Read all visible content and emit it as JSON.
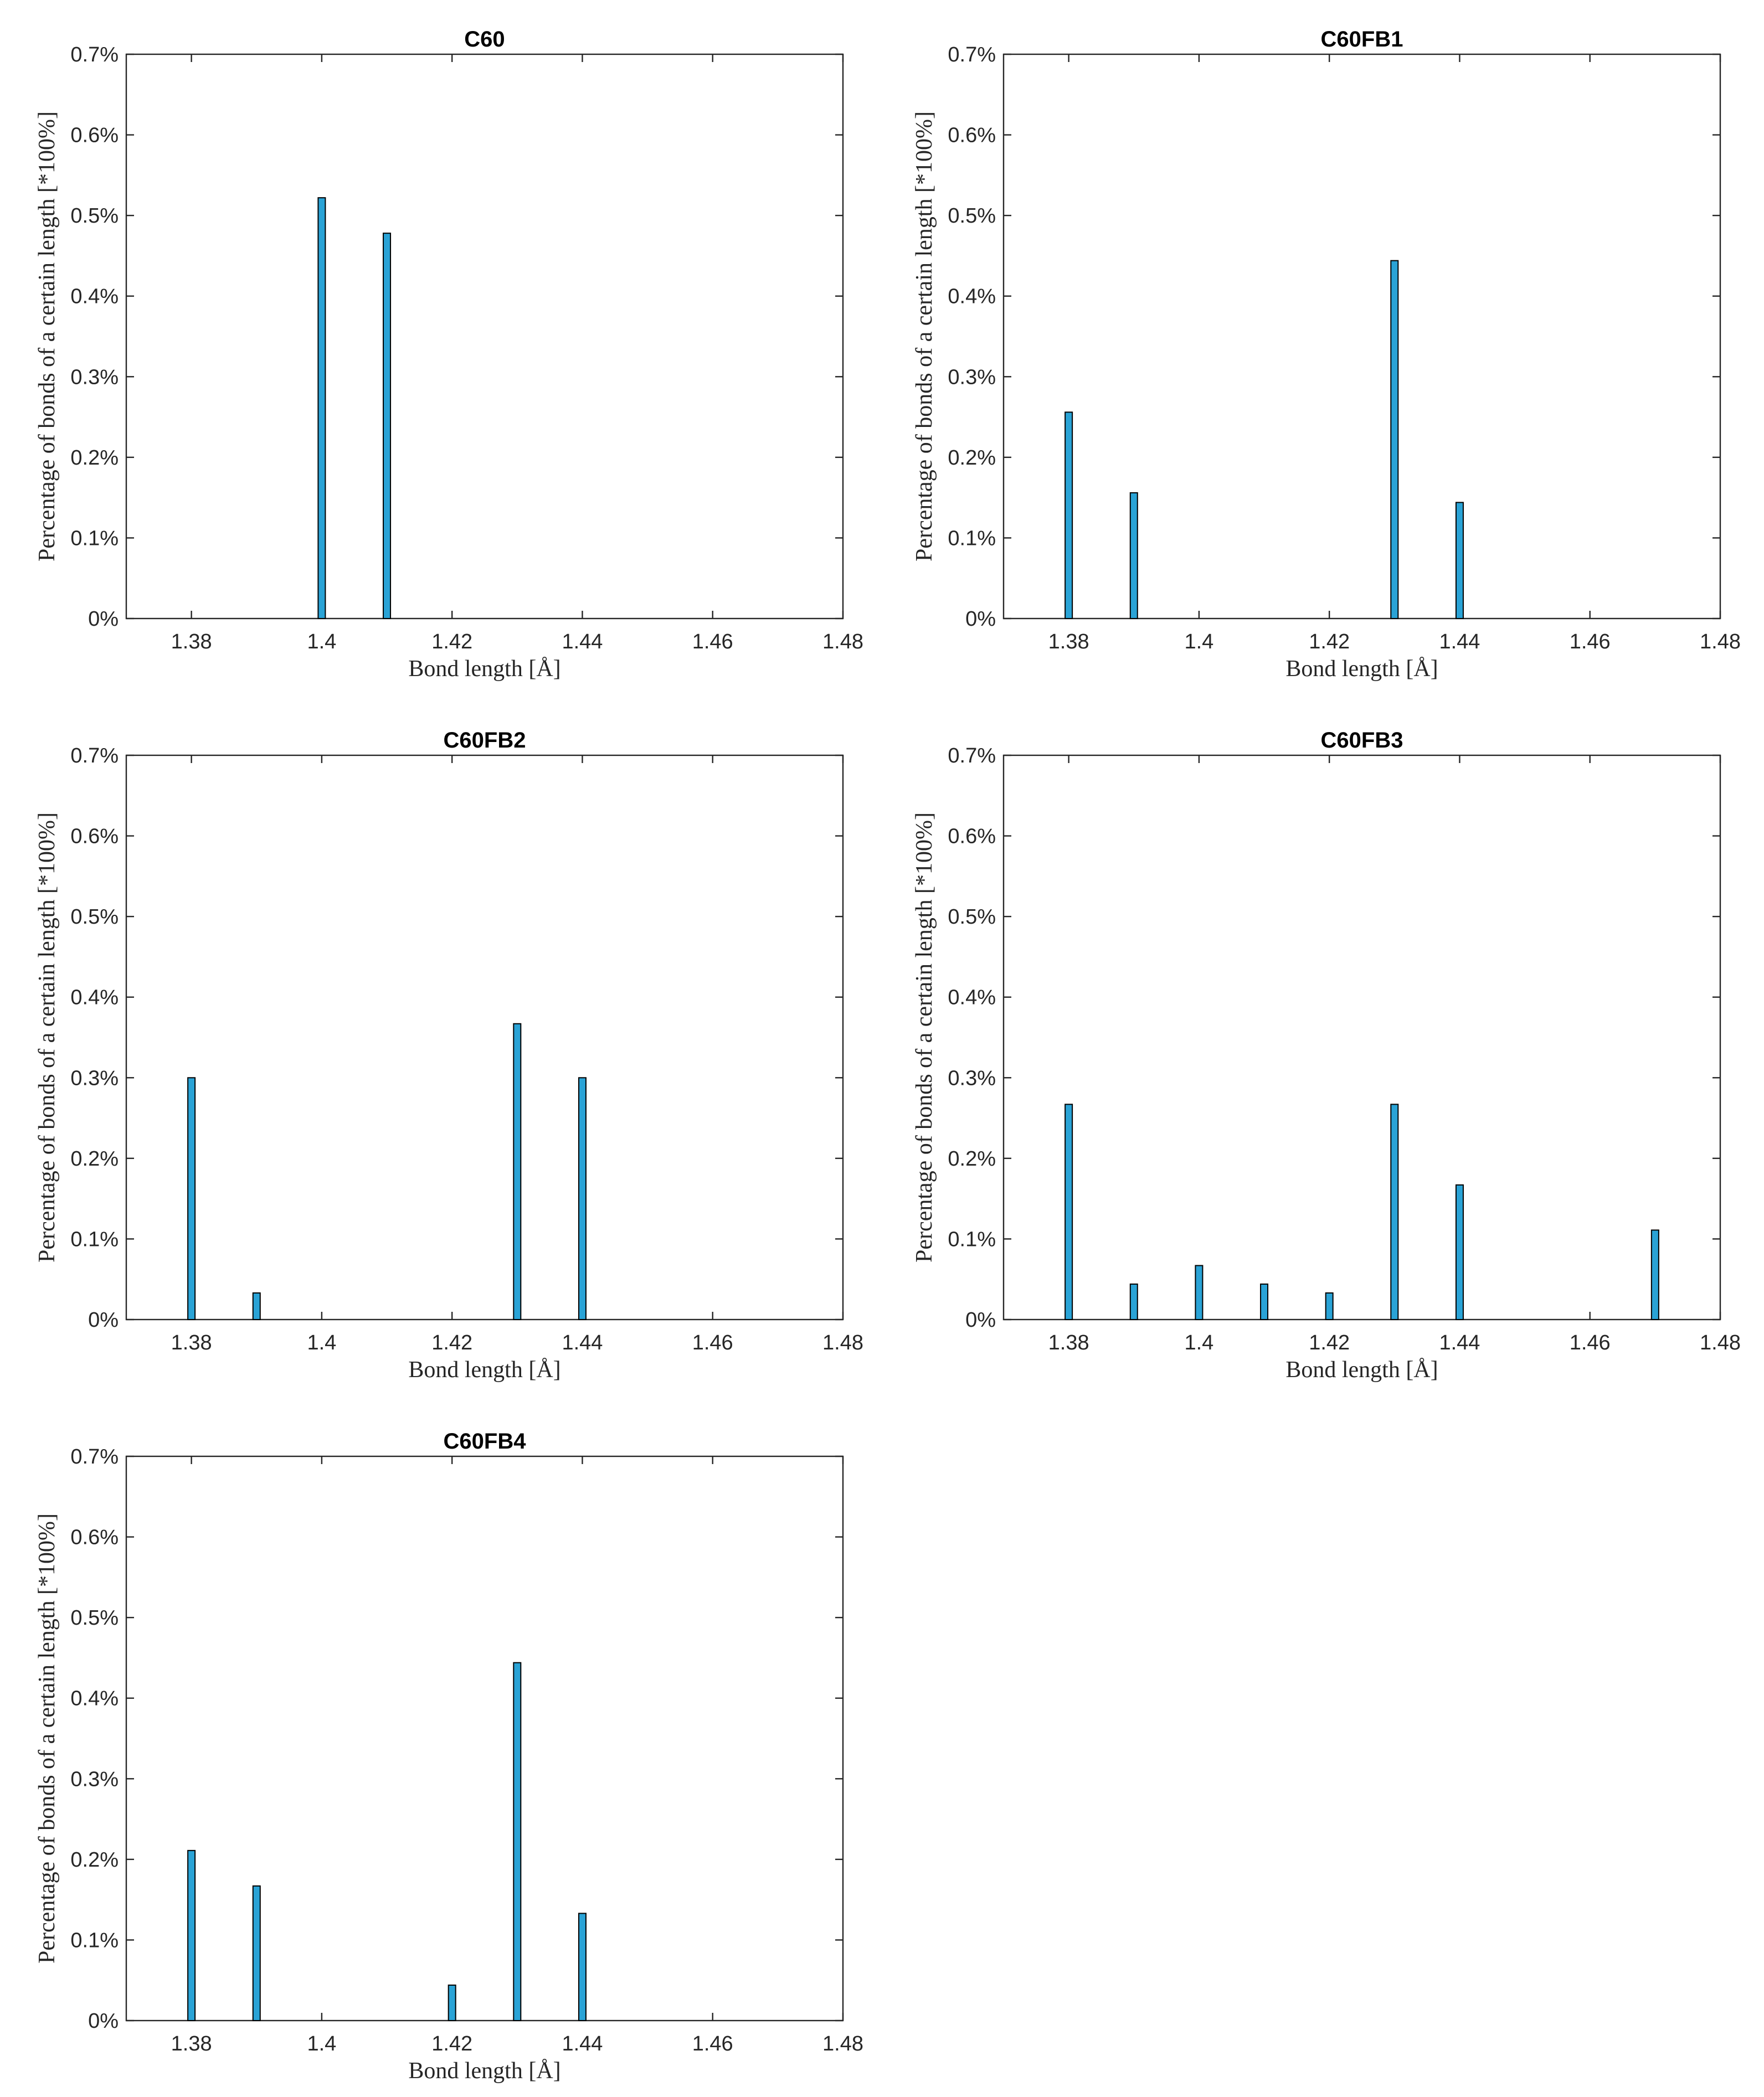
{
  "chart_data": [
    {
      "type": "bar",
      "title": "C60",
      "xlabel": "Bond length [Å]",
      "ylabel": "Percentage of bonds of a certain length [*100%]",
      "x": [
        1.4,
        1.41
      ],
      "values": [
        0.00522,
        0.00478
      ],
      "xlim": [
        1.37,
        1.48
      ],
      "ylim": [
        0,
        0.007
      ],
      "xticks": [
        "1.38",
        "1.4",
        "1.42",
        "1.44",
        "1.46",
        "1.48"
      ],
      "yticks": [
        "0%",
        "0.1%",
        "0.2%",
        "0.3%",
        "0.4%",
        "0.5%",
        "0.6%",
        "0.7%"
      ],
      "bar_color": "#2aa3d6",
      "grid": false
    },
    {
      "type": "bar",
      "title": "C60FB1",
      "xlabel": "Bond length [Å]",
      "ylabel": "Percentage of bonds of a certain length [*100%]",
      "x": [
        1.38,
        1.39,
        1.43,
        1.44
      ],
      "values": [
        0.00256,
        0.00156,
        0.00444,
        0.00144
      ],
      "xlim": [
        1.37,
        1.48
      ],
      "ylim": [
        0,
        0.007
      ],
      "xticks": [
        "1.38",
        "1.4",
        "1.42",
        "1.44",
        "1.46",
        "1.48"
      ],
      "yticks": [
        "0%",
        "0.1%",
        "0.2%",
        "0.3%",
        "0.4%",
        "0.5%",
        "0.6%",
        "0.7%"
      ],
      "bar_color": "#2aa3d6",
      "grid": false
    },
    {
      "type": "bar",
      "title": "C60FB2",
      "xlabel": "Bond length [Å]",
      "ylabel": "Percentage of bonds of a certain length [*100%]",
      "x": [
        1.38,
        1.39,
        1.43,
        1.44
      ],
      "values": [
        0.003,
        0.00033,
        0.00367,
        0.003
      ],
      "xlim": [
        1.37,
        1.48
      ],
      "ylim": [
        0,
        0.007
      ],
      "xticks": [
        "1.38",
        "1.4",
        "1.42",
        "1.44",
        "1.46",
        "1.48"
      ],
      "yticks": [
        "0%",
        "0.1%",
        "0.2%",
        "0.3%",
        "0.4%",
        "0.5%",
        "0.6%",
        "0.7%"
      ],
      "bar_color": "#2aa3d6",
      "grid": false
    },
    {
      "type": "bar",
      "title": "C60FB3",
      "xlabel": "Bond length [Å]",
      "ylabel": "Percentage of bonds of a certain length [*100%]",
      "x": [
        1.38,
        1.39,
        1.4,
        1.41,
        1.42,
        1.43,
        1.44,
        1.47
      ],
      "values": [
        0.00267,
        0.00044,
        0.00067,
        0.00044,
        0.00033,
        0.00267,
        0.00167,
        0.00111
      ],
      "xlim": [
        1.37,
        1.48
      ],
      "ylim": [
        0,
        0.007
      ],
      "xticks": [
        "1.38",
        "1.4",
        "1.42",
        "1.44",
        "1.46",
        "1.48"
      ],
      "yticks": [
        "0%",
        "0.1%",
        "0.2%",
        "0.3%",
        "0.4%",
        "0.5%",
        "0.6%",
        "0.7%"
      ],
      "bar_color": "#2aa3d6",
      "grid": false
    },
    {
      "type": "bar",
      "title": "C60FB4",
      "xlabel": "Bond length [Å]",
      "ylabel": "Percentage of bonds of a certain length [*100%]",
      "x": [
        1.38,
        1.39,
        1.42,
        1.43,
        1.44
      ],
      "values": [
        0.00211,
        0.00167,
        0.00044,
        0.00444,
        0.00133
      ],
      "xlim": [
        1.37,
        1.48
      ],
      "ylim": [
        0,
        0.007
      ],
      "xticks": [
        "1.38",
        "1.4",
        "1.42",
        "1.44",
        "1.46",
        "1.48"
      ],
      "yticks": [
        "0%",
        "0.1%",
        "0.2%",
        "0.3%",
        "0.4%",
        "0.5%",
        "0.6%",
        "0.7%"
      ],
      "bar_color": "#2aa3d6",
      "grid": false
    }
  ]
}
